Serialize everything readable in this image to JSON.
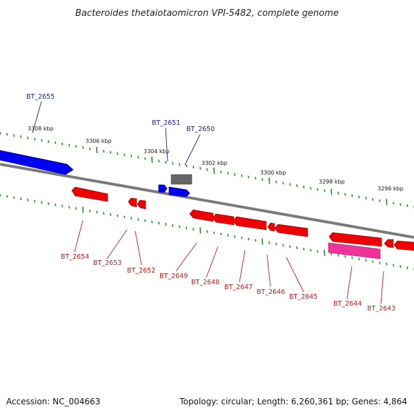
{
  "title": "Bacteroides thetaiotaomicron VPI-5482, complete genome",
  "footer": {
    "accession": "Accession: NC_004663",
    "summary": "Topology: circular; Length: 6,260,361 bp; Genes: 4,864"
  },
  "colors": {
    "forward_gene": "#0000ee",
    "reverse_gene": "#ee0000",
    "other_gene": "#707070",
    "pseudo_gene": "#ee3399",
    "backbone": "#888888",
    "ticks": "#2a8a2a",
    "forward_label": "#1a1aa6",
    "reverse_label": "#c41a1a"
  },
  "kbp_labels": [
    "3308 kbp",
    "3306 kbp",
    "3304 kbp",
    "3302 kbp",
    "3300 kbp",
    "3298 kbp",
    "3296 kbp"
  ],
  "forward_labels": [
    "BT_2655",
    "BT_2651",
    "BT_2650"
  ],
  "reverse_labels": [
    "BT_2654",
    "BT_2653",
    "BT_2652",
    "BT_2649",
    "BT_2648",
    "BT_2647",
    "BT_2646",
    "BT_2645",
    "BT_2644",
    "BT_2643"
  ]
}
